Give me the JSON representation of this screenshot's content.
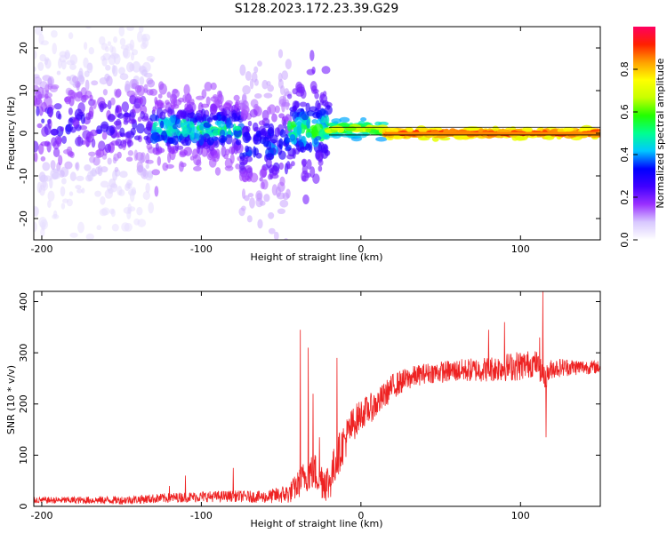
{
  "title": "S128.2023.172.23.39.G29",
  "chart_data": [
    {
      "type": "heatmap",
      "xlabel": "Height of straight line (km)",
      "ylabel": "Frequency (Hz)",
      "xlim": [
        -205,
        150
      ],
      "ylim": [
        -25,
        25
      ],
      "xticks": [
        -200,
        -100,
        0,
        100
      ],
      "yticks": [
        -20,
        -10,
        0,
        10,
        20
      ],
      "colorbar": {
        "label": "Normalized spectral amplitude",
        "range": [
          0,
          1
        ],
        "ticks": [
          "0.0",
          "0.2",
          "0.4",
          "0.6",
          "0.8"
        ],
        "colors": [
          "#ffffff",
          "#d8c8ff",
          "#9a30ff",
          "#4000ff",
          "#0000ff",
          "#00c8ff",
          "#00ff90",
          "#22ff00",
          "#c8ff00",
          "#ffff00",
          "#ffa000",
          "#ff2000",
          "#ff0060"
        ]
      },
      "regions": [
        {
          "x_range": [
            -205,
            -130
          ],
          "freq_center": 2,
          "spread": 24,
          "amplitude": [
            0.05,
            0.3
          ]
        },
        {
          "x_range": [
            -130,
            -75
          ],
          "freq_center": 1,
          "spread": 8,
          "amplitude": [
            0.15,
            0.55
          ]
        },
        {
          "x_range": [
            -75,
            -45
          ],
          "freq_center": -3,
          "spread": 18,
          "amplitude": [
            0.1,
            0.4
          ]
        },
        {
          "x_range": [
            -45,
            -20
          ],
          "freq_center": 1,
          "spread": 10,
          "amplitude": [
            0.2,
            0.6
          ]
        },
        {
          "x_range": [
            -20,
            15
          ],
          "freq_center": 1,
          "spread": 1.5,
          "amplitude": [
            0.4,
            0.8
          ]
        },
        {
          "x_range": [
            15,
            150
          ],
          "freq_center": 0,
          "spread": 0.8,
          "amplitude": [
            0.7,
            0.95
          ]
        }
      ]
    },
    {
      "type": "line",
      "xlabel": "Height of straight line (km)",
      "ylabel": "SNR (10 * v/v)",
      "xlim": [
        -205,
        150
      ],
      "ylim": [
        0,
        420
      ],
      "xticks": [
        -200,
        -100,
        0,
        100
      ],
      "yticks": [
        0,
        100,
        200,
        300,
        400
      ],
      "color": "#ee2222",
      "trend": {
        "x": [
          -205,
          -150,
          -110,
          -80,
          -60,
          -45,
          -40,
          -35,
          -30,
          -25,
          -20,
          -15,
          -10,
          -5,
          0,
          10,
          20,
          30,
          40,
          60,
          80,
          100,
          110,
          115,
          120,
          130,
          150
        ],
        "y": [
          12,
          12,
          18,
          20,
          18,
          25,
          40,
          60,
          70,
          55,
          45,
          95,
          130,
          160,
          180,
          200,
          235,
          250,
          260,
          265,
          268,
          275,
          280,
          250,
          270,
          272,
          272
        ]
      },
      "noise_amplitude": {
        "x": [
          -205,
          -110,
          -60,
          -45,
          -30,
          -20,
          -10,
          0,
          20,
          40,
          80,
          100,
          120,
          150
        ],
        "y": [
          6,
          10,
          12,
          20,
          40,
          40,
          40,
          30,
          25,
          20,
          25,
          30,
          20,
          12
        ]
      },
      "spikes": [
        {
          "x": -120,
          "y": 40
        },
        {
          "x": -110,
          "y": 60
        },
        {
          "x": -80,
          "y": 75
        },
        {
          "x": -38,
          "y": 345
        },
        {
          "x": -33,
          "y": 310
        },
        {
          "x": -30,
          "y": 220
        },
        {
          "x": -26,
          "y": 135
        },
        {
          "x": -15,
          "y": 290
        },
        {
          "x": 80,
          "y": 345
        },
        {
          "x": 90,
          "y": 360
        },
        {
          "x": 112,
          "y": 330
        },
        {
          "x": 114,
          "y": 420
        },
        {
          "x": 116,
          "y": 135
        }
      ]
    }
  ]
}
